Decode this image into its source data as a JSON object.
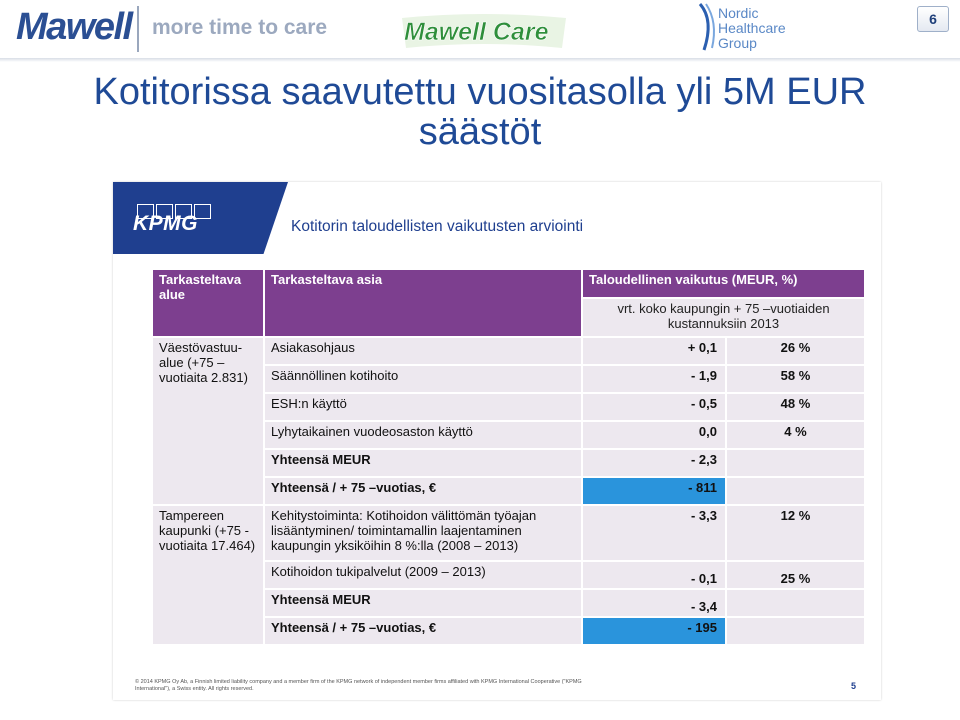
{
  "header": {
    "brand": "Mawell",
    "tagline": "more time to care",
    "care_logo": "Mawell Care",
    "group_logo_lines": [
      "Nordic",
      "Healthcare",
      "Group"
    ],
    "page_number": "6"
  },
  "title_line1": "Kotitorissa saavutettu vuositasolla yli 5M EUR",
  "title_line2": "säästöt",
  "slide": {
    "logo": "KPMG",
    "heading": "Kotitorin taloudellisten vaikutusten arviointi",
    "col_headers": {
      "area": "Tarkasteltava alue",
      "item": "Tarkasteltava asia",
      "impact": "Taloudellinen vaikutus (MEUR, %)",
      "subheader": "vrt. koko kaupungin + 75 –vuotiaiden kustannuksiin 2013"
    },
    "group1": {
      "area": "Väestövastuu-alue (+75 –vuotiaita 2.831)",
      "rows": [
        {
          "item": "Asiakasohjaus",
          "value": "+ 0,1",
          "pct": "26 %"
        },
        {
          "item": "Säännöllinen kotihoito",
          "value": "- 1,9",
          "pct": "58 %"
        },
        {
          "item": "ESH:n käyttö",
          "value": "- 0,5",
          "pct": "48 %"
        },
        {
          "item": "Lyhytaikainen vuodeosaston käyttö",
          "value": "0,0",
          "pct": "4 %"
        }
      ],
      "total_label": "Yhteensä MEUR",
      "total_value": "- 2,3",
      "per_label": "Yhteensä / + 75 –vuotias, €",
      "per_value": "- 811"
    },
    "group2": {
      "area": "Tampereen kaupunki (+75 -vuotiaita 17.464)",
      "rows": [
        {
          "item": "Kehitystoiminta: Kotihoidon välittömän työajan lisääntyminen/ toimintamallin laajentaminen kaupungin yksiköihin 8 %:lla (2008 – 2013)",
          "value": "- 3,3",
          "pct": "12 %"
        },
        {
          "item": "Kotihoidon tukipalvelut (2009 – 2013)",
          "value": "- 0,1",
          "pct": "25 %"
        }
      ],
      "total_label": "Yhteensä MEUR",
      "total_value": "- 3,4",
      "per_label": "Yhteensä / + 75 –vuotias, €",
      "per_value": "- 195"
    },
    "footer": "© 2014 KPMG Oy Ab, a Finnish limited liability company and a member firm of the KPMG network of independent member firms affiliated with KPMG International Cooperative (\"KPMG International\"), a Swiss entity. All rights reserved.",
    "page_number": "5"
  },
  "colors": {
    "title_blue": "#1f4a96",
    "kpmg_blue": "#1f3f8f",
    "header_purple": "#7d3f8f",
    "cell_bg": "#ede8ef",
    "highlight_blue": "#2a94dc"
  }
}
